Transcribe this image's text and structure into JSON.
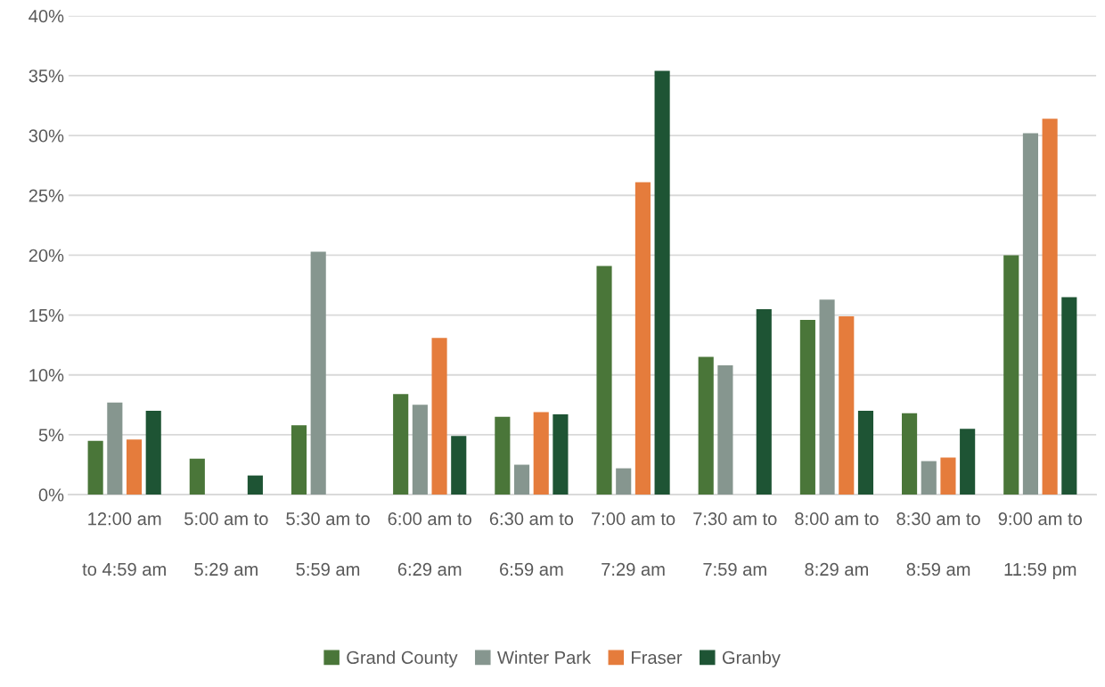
{
  "chart_data": {
    "type": "bar",
    "categories": [
      "12:00 am\nto 4:59 am",
      "5:00 am to\n5:29 am",
      "5:30 am to\n5:59 am",
      "6:00 am to\n6:29 am",
      "6:30 am to\n6:59 am",
      "7:00 am to\n7:29 am",
      "7:30 am to\n7:59 am",
      "8:00 am to\n8:29 am",
      "8:30 am to\n8:59 am",
      "9:00 am to\n11:59 pm"
    ],
    "series": [
      {
        "name": "Grand County",
        "color": "#4a7639",
        "values": [
          4.5,
          3.0,
          5.8,
          8.4,
          6.5,
          19.1,
          11.5,
          14.6,
          6.8,
          20.0
        ]
      },
      {
        "name": "Winter Park",
        "color": "#86968f",
        "values": [
          7.7,
          0,
          20.3,
          7.5,
          2.5,
          2.2,
          10.8,
          16.3,
          2.8,
          30.2
        ]
      },
      {
        "name": "Fraser",
        "color": "#e57c3c",
        "values": [
          4.6,
          0,
          0,
          13.1,
          6.9,
          26.1,
          0,
          14.9,
          3.1,
          31.4
        ]
      },
      {
        "name": "Granby",
        "color": "#1e5434",
        "values": [
          7.0,
          1.6,
          0,
          4.9,
          6.7,
          35.4,
          15.5,
          7.0,
          5.5,
          16.5
        ]
      }
    ],
    "ylim": [
      0,
      40
    ],
    "yticks": [
      {
        "value": 0,
        "label": "0%"
      },
      {
        "value": 5,
        "label": "5%"
      },
      {
        "value": 10,
        "label": "10%"
      },
      {
        "value": 15,
        "label": "15%"
      },
      {
        "value": 20,
        "label": "20%"
      },
      {
        "value": 25,
        "label": "25%"
      },
      {
        "value": 30,
        "label": "30%"
      },
      {
        "value": 35,
        "label": "35%"
      },
      {
        "value": 40,
        "label": "40%"
      }
    ],
    "grid": "y",
    "legend": "bottom"
  }
}
